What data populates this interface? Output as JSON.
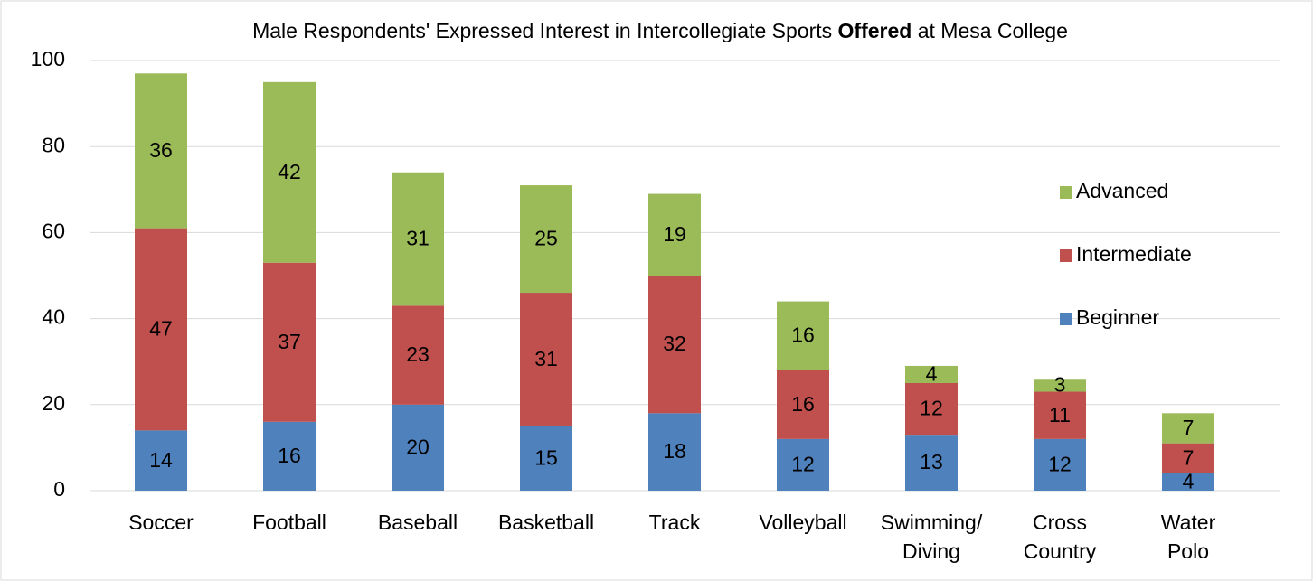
{
  "chart_data": {
    "type": "stacked_bar",
    "title": [
      "Male Respondents' Expressed Interest in Intercollegiate Sports",
      "Offered",
      "at Mesa College"
    ],
    "categories": [
      "Soccer",
      "Football",
      "Baseball",
      "Basketball",
      "Track",
      "Volleyball",
      "Swimming/ Diving",
      "Cross Country",
      "Water Polo"
    ],
    "series": [
      {
        "name": "Beginner",
        "color": "#4f81bd",
        "values": [
          14,
          16,
          20,
          15,
          18,
          12,
          13,
          12,
          4
        ]
      },
      {
        "name": "Intermediate",
        "color": "#c0504d",
        "values": [
          47,
          37,
          23,
          31,
          32,
          16,
          12,
          11,
          7
        ]
      },
      {
        "name": "Advanced",
        "color": "#9bbb59",
        "values": [
          36,
          42,
          31,
          25,
          19,
          16,
          4,
          3,
          7
        ]
      }
    ],
    "ylim": [
      0,
      100
    ],
    "yticks": [
      0,
      20,
      40,
      60,
      80,
      100
    ],
    "grid": true,
    "legend": "right"
  }
}
